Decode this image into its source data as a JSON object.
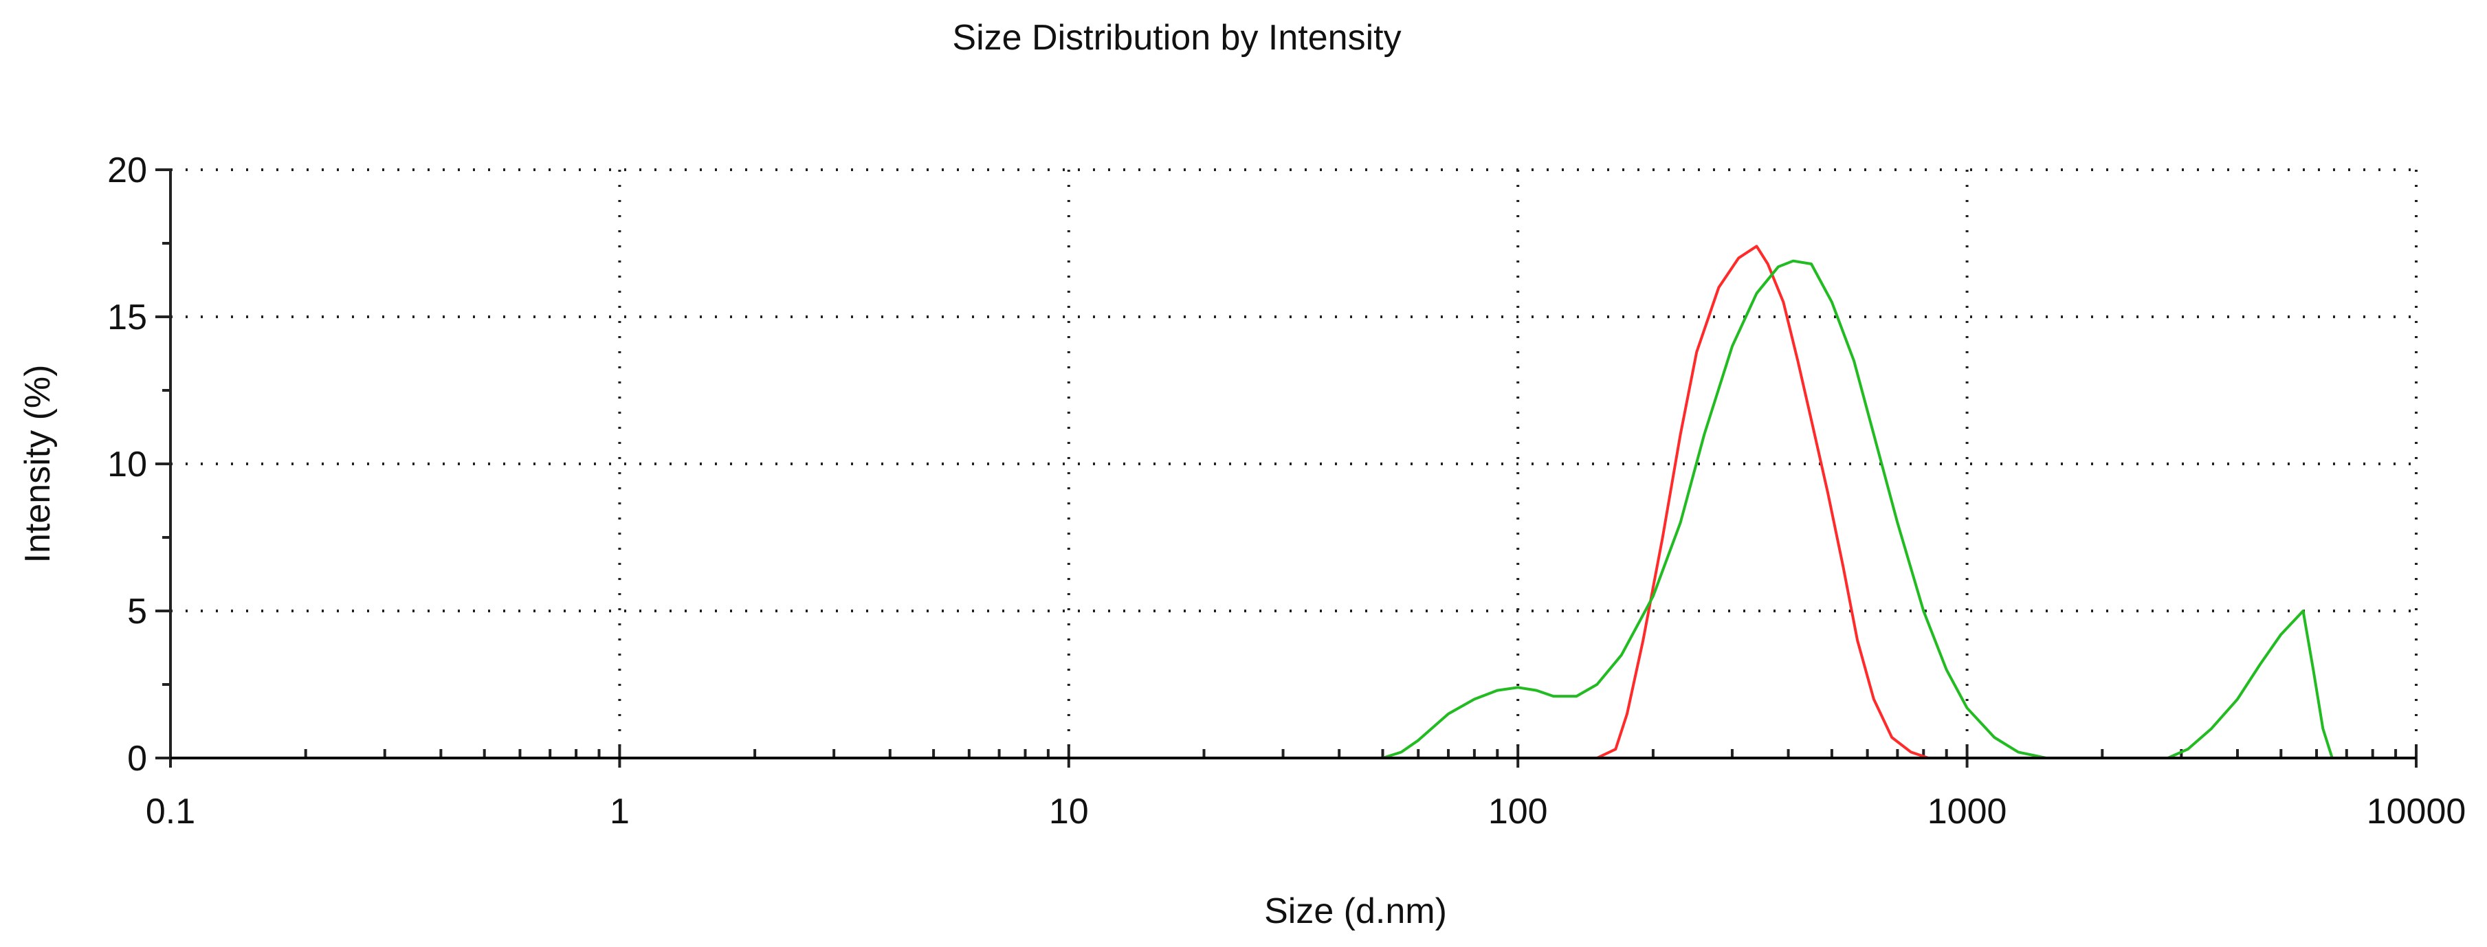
{
  "chart_data": {
    "type": "line",
    "title": "Size Distribution by Intensity",
    "xlabel": "Size (d.nm)",
    "ylabel": "Intensity (%)",
    "x_scale": "log",
    "xlim": [
      0.1,
      10000
    ],
    "ylim": [
      0,
      20
    ],
    "x_ticks": [
      0.1,
      1,
      10,
      100,
      1000,
      10000
    ],
    "x_tick_labels": [
      "0.1",
      "1",
      "10",
      "100",
      "1000",
      "10000"
    ],
    "y_ticks": [
      0,
      5,
      10,
      15,
      20
    ],
    "y_tick_labels": [
      "0",
      "5",
      "10",
      "15",
      "20"
    ],
    "grid": "dotted",
    "series": [
      {
        "color": "#ff2a2a",
        "points": [
          [
            0.4,
            0
          ],
          [
            1,
            0
          ],
          [
            10,
            0
          ],
          [
            100,
            0
          ],
          [
            150,
            0
          ],
          [
            165,
            0.3
          ],
          [
            175,
            1.5
          ],
          [
            190,
            4
          ],
          [
            210,
            7.5
          ],
          [
            230,
            11
          ],
          [
            250,
            13.8
          ],
          [
            280,
            16
          ],
          [
            310,
            17
          ],
          [
            340,
            17.4
          ],
          [
            360,
            16.8
          ],
          [
            390,
            15.5
          ],
          [
            420,
            13.5
          ],
          [
            450,
            11.5
          ],
          [
            490,
            9
          ],
          [
            530,
            6.5
          ],
          [
            570,
            4
          ],
          [
            620,
            2
          ],
          [
            680,
            0.7
          ],
          [
            750,
            0.2
          ],
          [
            820,
            0
          ],
          [
            1000,
            0
          ],
          [
            10000,
            0
          ]
        ]
      },
      {
        "color": "#22bb22",
        "points": [
          [
            0.1,
            0
          ],
          [
            50,
            0
          ],
          [
            55,
            0.2
          ],
          [
            60,
            0.6
          ],
          [
            70,
            1.5
          ],
          [
            80,
            2.0
          ],
          [
            90,
            2.3
          ],
          [
            100,
            2.4
          ],
          [
            110,
            2.3
          ],
          [
            120,
            2.1
          ],
          [
            135,
            2.1
          ],
          [
            150,
            2.5
          ],
          [
            170,
            3.5
          ],
          [
            200,
            5.5
          ],
          [
            230,
            8
          ],
          [
            260,
            11
          ],
          [
            300,
            14
          ],
          [
            340,
            15.8
          ],
          [
            380,
            16.7
          ],
          [
            410,
            16.9
          ],
          [
            450,
            16.8
          ],
          [
            500,
            15.5
          ],
          [
            560,
            13.5
          ],
          [
            620,
            11
          ],
          [
            700,
            8
          ],
          [
            800,
            5
          ],
          [
            900,
            3
          ],
          [
            1000,
            1.7
          ],
          [
            1150,
            0.7
          ],
          [
            1300,
            0.2
          ],
          [
            1500,
            0
          ],
          [
            2800,
            0
          ],
          [
            3100,
            0.3
          ],
          [
            3500,
            1.0
          ],
          [
            4000,
            2.0
          ],
          [
            4500,
            3.2
          ],
          [
            5000,
            4.2
          ],
          [
            5600,
            5.0
          ],
          [
            5900,
            3
          ],
          [
            6200,
            1
          ],
          [
            6500,
            0
          ],
          [
            10000,
            0
          ]
        ]
      },
      {
        "color": "#000000",
        "points": [
          [
            0.1,
            0
          ],
          [
            10000,
            0
          ]
        ]
      }
    ]
  }
}
